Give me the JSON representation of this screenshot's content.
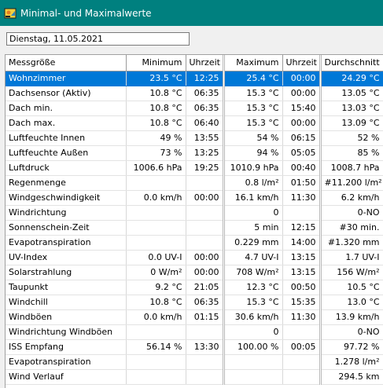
{
  "window": {
    "title": "Minimal- und Maximalwerte"
  },
  "date_field": {
    "value": "Dienstag, 11.05.2021"
  },
  "columns": [
    "Messgröße",
    "Minimum",
    "Uhrzeit",
    "Maximum",
    "Uhrzeit",
    "Durchschnitt"
  ],
  "rows": [
    [
      "Wohnzimmer",
      "23.5 °C",
      "12:25",
      "25.4 °C",
      "00:00",
      "24.29 °C"
    ],
    [
      "Dachsensor (Aktiv)",
      "10.8 °C",
      "06:35",
      "15.3 °C",
      "00:00",
      "13.05 °C"
    ],
    [
      "Dach min.",
      "10.8 °C",
      "06:35",
      "15.3 °C",
      "15:40",
      "13.03 °C"
    ],
    [
      "Dach max.",
      "10.8 °C",
      "06:40",
      "15.3 °C",
      "00:00",
      "13.09 °C"
    ],
    [
      "Luftfeuchte Innen",
      "49 %",
      "13:55",
      "54 %",
      "06:15",
      "52 %"
    ],
    [
      "Luftfeuchte Außen",
      "73 %",
      "13:25",
      "94 %",
      "05:05",
      "85 %"
    ],
    [
      "Luftdruck",
      "1006.6 hPa",
      "19:25",
      "1010.9 hPa",
      "00:40",
      "1008.7 hPa"
    ],
    [
      "Regenmenge",
      "",
      "",
      "0.8 l/m²",
      "01:50",
      "#11.200 l/m²"
    ],
    [
      "Windgeschwindigkeit",
      "0.0 km/h",
      "00:00",
      "16.1 km/h",
      "11:30",
      "6.2 km/h"
    ],
    [
      "Windrichtung",
      "",
      "",
      "0",
      "",
      "0-NO"
    ],
    [
      "Sonnenschein-Zeit",
      "",
      "",
      "5 min",
      "12:15",
      "#30 min."
    ],
    [
      "Evapotranspiration",
      "",
      "",
      "0.229 mm",
      "14:00",
      "#1.320 mm"
    ],
    [
      "UV-Index",
      "0.0 UV-I",
      "00:00",
      "4.7 UV-I",
      "13:15",
      "1.7 UV-I"
    ],
    [
      "Solarstrahlung",
      "0 W/m²",
      "00:00",
      "708 W/m²",
      "13:15",
      "156 W/m²"
    ],
    [
      "Taupunkt",
      "9.2 °C",
      "21:05",
      "12.3 °C",
      "00:50",
      "10.5 °C"
    ],
    [
      "Windchill",
      "10.8 °C",
      "06:35",
      "15.3 °C",
      "15:35",
      "13.0 °C"
    ],
    [
      "Windböen",
      "0.0 km/h",
      "01:15",
      "30.6 km/h",
      "11:30",
      "13.9 km/h"
    ],
    [
      "Windrichtung Windböen",
      "",
      "",
      "0",
      "",
      "0-NO"
    ],
    [
      "ISS Empfang",
      "56.14 %",
      "13:30",
      "100.00 %",
      "00:05",
      "97.72 %"
    ],
    [
      "Evapotranspiration",
      "",
      "",
      "",
      "",
      "1.278 l/m²"
    ],
    [
      "Wind Verlauf",
      "",
      "",
      "",
      "",
      "294.5 km"
    ]
  ],
  "selected_row_index": 0,
  "colors": {
    "titlebar": "#00807f",
    "selection": "#0078d7"
  },
  "icons": {
    "app": "weather-station-icon"
  }
}
